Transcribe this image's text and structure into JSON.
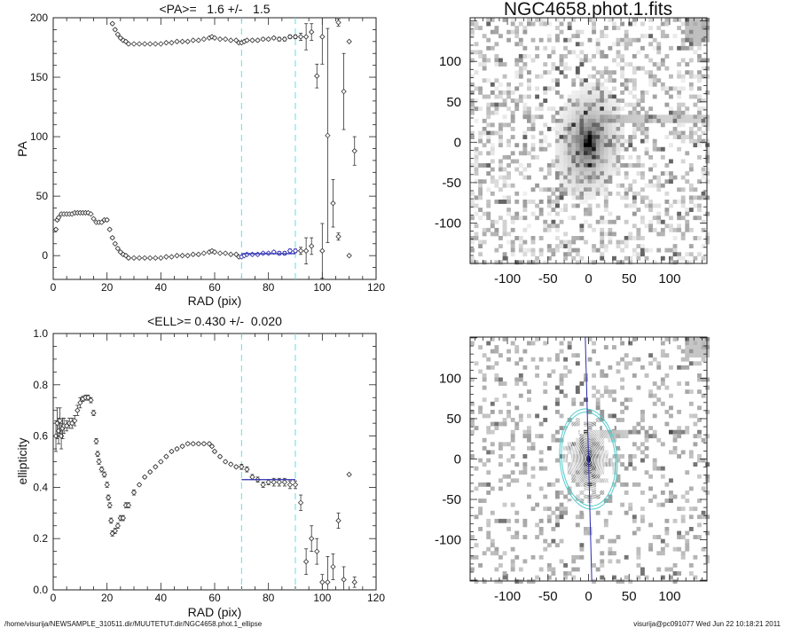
{
  "footer": {
    "path": "/home/visurija/NEWSAMPLE_310511.dir/MUUTETUT.dir/NGC4658.phot.1_ellipse",
    "stamp": "visurija@pc091077  Wed Jun 22 10:18:21 2011"
  },
  "colors": {
    "points": "#333333",
    "fit": "#2b2bb0",
    "range": "#66dddd",
    "contour_outer": "#55cccc"
  },
  "chart_data": [
    {
      "type": "scatter",
      "title": "<PA>=   1.6 +/-   1.5",
      "xlabel": "RAD (pix)",
      "ylabel": "PA",
      "xlim": [
        0,
        120
      ],
      "ylim": [
        -20,
        200
      ],
      "xticks": [
        0,
        20,
        40,
        60,
        80,
        100,
        120
      ],
      "yticks": [
        0,
        50,
        100,
        150,
        200
      ],
      "fit_range": [
        70,
        90
      ],
      "fit_value": 1.6,
      "note": "each point also drawn at PA+180",
      "points": [
        [
          1,
          22,
          1
        ],
        [
          1.5,
          30,
          1
        ],
        [
          2,
          32,
          1
        ],
        [
          3,
          35,
          1
        ],
        [
          4,
          35,
          0.5
        ],
        [
          5,
          35,
          0.5
        ],
        [
          6,
          35,
          0.5
        ],
        [
          7,
          35,
          0.5
        ],
        [
          8,
          36,
          0.5
        ],
        [
          9,
          36,
          0.5
        ],
        [
          10,
          36,
          0.5
        ],
        [
          11,
          36,
          0.5
        ],
        [
          12,
          36,
          0.5
        ],
        [
          13,
          36,
          0.5
        ],
        [
          14,
          35,
          0.5
        ],
        [
          15,
          31,
          0.5
        ],
        [
          16,
          28,
          0.5
        ],
        [
          17,
          28,
          0.5
        ],
        [
          18,
          28,
          0.5
        ],
        [
          19,
          30,
          0.5
        ],
        [
          20,
          30,
          1
        ],
        [
          21,
          22,
          1
        ],
        [
          22,
          15,
          1
        ],
        [
          23,
          10,
          1
        ],
        [
          24,
          6,
          1
        ],
        [
          25,
          3,
          1
        ],
        [
          26,
          1,
          1
        ],
        [
          27,
          0,
          1
        ],
        [
          28,
          -2,
          1
        ],
        [
          30,
          -2,
          0.5
        ],
        [
          32,
          -2,
          0.5
        ],
        [
          34,
          -2,
          0.5
        ],
        [
          36,
          -2,
          0.5
        ],
        [
          38,
          -2,
          0.5
        ],
        [
          40,
          -2,
          0.5
        ],
        [
          42,
          -1,
          0.5
        ],
        [
          44,
          -1,
          0.5
        ],
        [
          46,
          0,
          0.5
        ],
        [
          48,
          0,
          0.5
        ],
        [
          50,
          0,
          0.5
        ],
        [
          52,
          1,
          0.5
        ],
        [
          54,
          1,
          0.5
        ],
        [
          56,
          2,
          0.5
        ],
        [
          58,
          3,
          0.5
        ],
        [
          59,
          4,
          0.5
        ],
        [
          60,
          3,
          0.5
        ],
        [
          62,
          2,
          0.5
        ],
        [
          64,
          2,
          0.5
        ],
        [
          66,
          1,
          0.5
        ],
        [
          68,
          1,
          0.5
        ],
        [
          69,
          -1,
          0.5
        ],
        [
          70,
          -1,
          0.5
        ],
        [
          71,
          0,
          0.5
        ],
        [
          72,
          1,
          1
        ],
        [
          74,
          1,
          1
        ],
        [
          76,
          1,
          1
        ],
        [
          78,
          2,
          1
        ],
        [
          80,
          2,
          1
        ],
        [
          82,
          3,
          1
        ],
        [
          84,
          2,
          1.5
        ],
        [
          86,
          2,
          1.5
        ],
        [
          88,
          4,
          1.5
        ],
        [
          90,
          4,
          1.5
        ],
        [
          92,
          4,
          3
        ],
        [
          94,
          4,
          11
        ],
        [
          96,
          8,
          7
        ],
        [
          98,
          151,
          10
        ],
        [
          100,
          4,
          23
        ],
        [
          102,
          101,
          90
        ],
        [
          104,
          44,
          20
        ],
        [
          106,
          16,
          3
        ],
        [
          108,
          138,
          32
        ],
        [
          110,
          0,
          0
        ],
        [
          112,
          88,
          12
        ]
      ]
    },
    {
      "type": "scatter",
      "title": "<ELL>= 0.430 +/-  0.020",
      "xlabel": "RAD (pix)",
      "ylabel": "ellipticity",
      "xlim": [
        0,
        120
      ],
      "ylim": [
        0,
        1
      ],
      "xticks": [
        0,
        20,
        40,
        60,
        80,
        100,
        120
      ],
      "yticks": [
        "0.0",
        "0.2",
        "0.4",
        "0.6",
        "0.8",
        "1.0"
      ],
      "fit_range": [
        70,
        90
      ],
      "fit_value": 0.43,
      "points": [
        [
          1,
          0.6,
          0.06
        ],
        [
          1.5,
          0.65,
          0.06
        ],
        [
          2,
          0.62,
          0.05
        ],
        [
          2.5,
          0.66,
          0.05
        ],
        [
          3,
          0.6,
          0.05
        ],
        [
          3.5,
          0.63,
          0.04
        ],
        [
          4,
          0.64,
          0.03
        ],
        [
          5,
          0.64,
          0.02
        ],
        [
          6,
          0.65,
          0.02
        ],
        [
          7,
          0.65,
          0.02
        ],
        [
          8,
          0.66,
          0.02
        ],
        [
          9,
          0.7,
          0.02
        ],
        [
          10,
          0.73,
          0.02
        ],
        [
          11,
          0.745,
          0.01
        ],
        [
          12,
          0.75,
          0.01
        ],
        [
          13,
          0.75,
          0.01
        ],
        [
          14,
          0.74,
          0.01
        ],
        [
          15,
          0.69,
          0.01
        ],
        [
          16,
          0.58,
          0.01
        ],
        [
          16.5,
          0.53,
          0.01
        ],
        [
          17,
          0.5,
          0.01
        ],
        [
          18,
          0.47,
          0.01
        ],
        [
          19,
          0.45,
          0.01
        ],
        [
          20,
          0.41,
          0.01
        ],
        [
          20.5,
          0.36,
          0.01
        ],
        [
          21,
          0.33,
          0.01
        ],
        [
          21.5,
          0.27,
          0.01
        ],
        [
          22,
          0.22,
          0.01
        ],
        [
          23,
          0.23,
          0.01
        ],
        [
          24,
          0.25,
          0.01
        ],
        [
          25,
          0.28,
          0.01
        ],
        [
          26,
          0.28,
          0.01
        ],
        [
          27,
          0.33,
          0.01
        ],
        [
          28,
          0.33,
          0.01
        ],
        [
          30,
          0.38,
          0.01
        ],
        [
          32,
          0.41,
          0.005
        ],
        [
          34,
          0.44,
          0.005
        ],
        [
          36,
          0.46,
          0.005
        ],
        [
          38,
          0.48,
          0.005
        ],
        [
          40,
          0.5,
          0.005
        ],
        [
          42,
          0.52,
          0.005
        ],
        [
          44,
          0.54,
          0.005
        ],
        [
          46,
          0.55,
          0.005
        ],
        [
          48,
          0.56,
          0.005
        ],
        [
          50,
          0.57,
          0.005
        ],
        [
          52,
          0.57,
          0.005
        ],
        [
          54,
          0.57,
          0.005
        ],
        [
          56,
          0.57,
          0.005
        ],
        [
          58,
          0.57,
          0.005
        ],
        [
          59,
          0.56,
          0.005
        ],
        [
          60,
          0.54,
          0.005
        ],
        [
          62,
          0.52,
          0.005
        ],
        [
          64,
          0.5,
          0.005
        ],
        [
          66,
          0.49,
          0.005
        ],
        [
          68,
          0.48,
          0.005
        ],
        [
          70,
          0.48,
          0.01
        ],
        [
          72,
          0.47,
          0.01
        ],
        [
          74,
          0.44,
          0.01
        ],
        [
          76,
          0.43,
          0.01
        ],
        [
          78,
          0.41,
          0.01
        ],
        [
          80,
          0.42,
          0.01
        ],
        [
          82,
          0.42,
          0.015
        ],
        [
          84,
          0.42,
          0.015
        ],
        [
          86,
          0.42,
          0.015
        ],
        [
          88,
          0.41,
          0.015
        ],
        [
          90,
          0.41,
          0.015
        ],
        [
          92,
          0.34,
          0.03
        ],
        [
          94,
          0.11,
          0.05
        ],
        [
          96,
          0.2,
          0.05
        ],
        [
          98,
          0.15,
          0.05
        ],
        [
          100,
          0.03,
          0.03
        ],
        [
          102,
          0.03,
          0.1
        ],
        [
          104,
          0.09,
          0.05
        ],
        [
          106,
          0.27,
          0.03
        ],
        [
          108,
          0.04,
          0.05
        ],
        [
          110,
          0.45,
          0
        ],
        [
          112,
          0.03,
          0.02
        ]
      ]
    },
    {
      "type": "heatmap",
      "title": "NGC4658.phot.1.fits",
      "xlim": [
        -146,
        146
      ],
      "ylim": [
        -150,
        154
      ],
      "xticks": [
        -100,
        -50,
        0,
        50,
        100
      ],
      "yticks": [
        -100,
        -50,
        0,
        50,
        100
      ]
    },
    {
      "type": "heatmap",
      "title": "",
      "xlim": [
        -146,
        146
      ],
      "ylim": [
        -151,
        151
      ],
      "xticks": [
        -100,
        -50,
        0,
        50,
        100
      ],
      "yticks": [
        -100,
        -50,
        0,
        50,
        100
      ],
      "contours": "isophote ellipses, ellipticity 0.43, PA 1.6"
    }
  ]
}
